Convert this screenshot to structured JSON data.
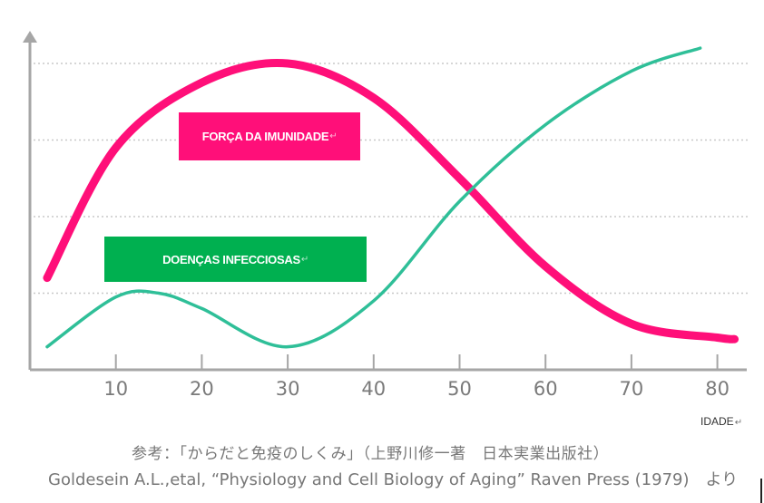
{
  "chart_data": {
    "type": "line",
    "title": "",
    "xlabel": "IDADE",
    "ylabel": "",
    "x_ticks": [
      10,
      20,
      30,
      40,
      50,
      60,
      70,
      80
    ],
    "xlim": [
      0,
      84
    ],
    "ylim": [
      0,
      4.2
    ],
    "grid": "horizontal dotted",
    "y_gridlines": [
      1,
      2,
      3,
      4
    ],
    "series": [
      {
        "name": "FORÇA DA IMUNIDADE",
        "color": "#ff0f79",
        "x": [
          2,
          10,
          20,
          30,
          40,
          50,
          60,
          70,
          80,
          82
        ],
        "y": [
          1.2,
          2.9,
          3.75,
          4.0,
          3.55,
          2.5,
          1.35,
          0.6,
          0.42,
          0.4
        ]
      },
      {
        "name": "DOENÇAS INFECCIOSAS",
        "color": "#2fbf98",
        "x": [
          2,
          10,
          15,
          20,
          30,
          40,
          50,
          60,
          70,
          78
        ],
        "y": [
          0.3,
          0.95,
          1.0,
          0.8,
          0.3,
          0.9,
          2.2,
          3.2,
          3.9,
          4.2
        ]
      }
    ]
  },
  "legend_labels": {
    "immunity": "FORÇA DA IMUNIDADE",
    "infectious": "DOENÇAS INFECCIOSAS"
  },
  "legend_colors": {
    "immunity": "#ff0f79",
    "infectious": "#00b050"
  },
  "return_mark": "↵",
  "reference": {
    "japanese": "参考：「からだと免疫のしくみ」（上野川修一著　日本実業出版社）",
    "english": "Goldesein A.L.,etal, “Physiology and Cell Biology of Aging” Raven Press (1979)　より"
  }
}
